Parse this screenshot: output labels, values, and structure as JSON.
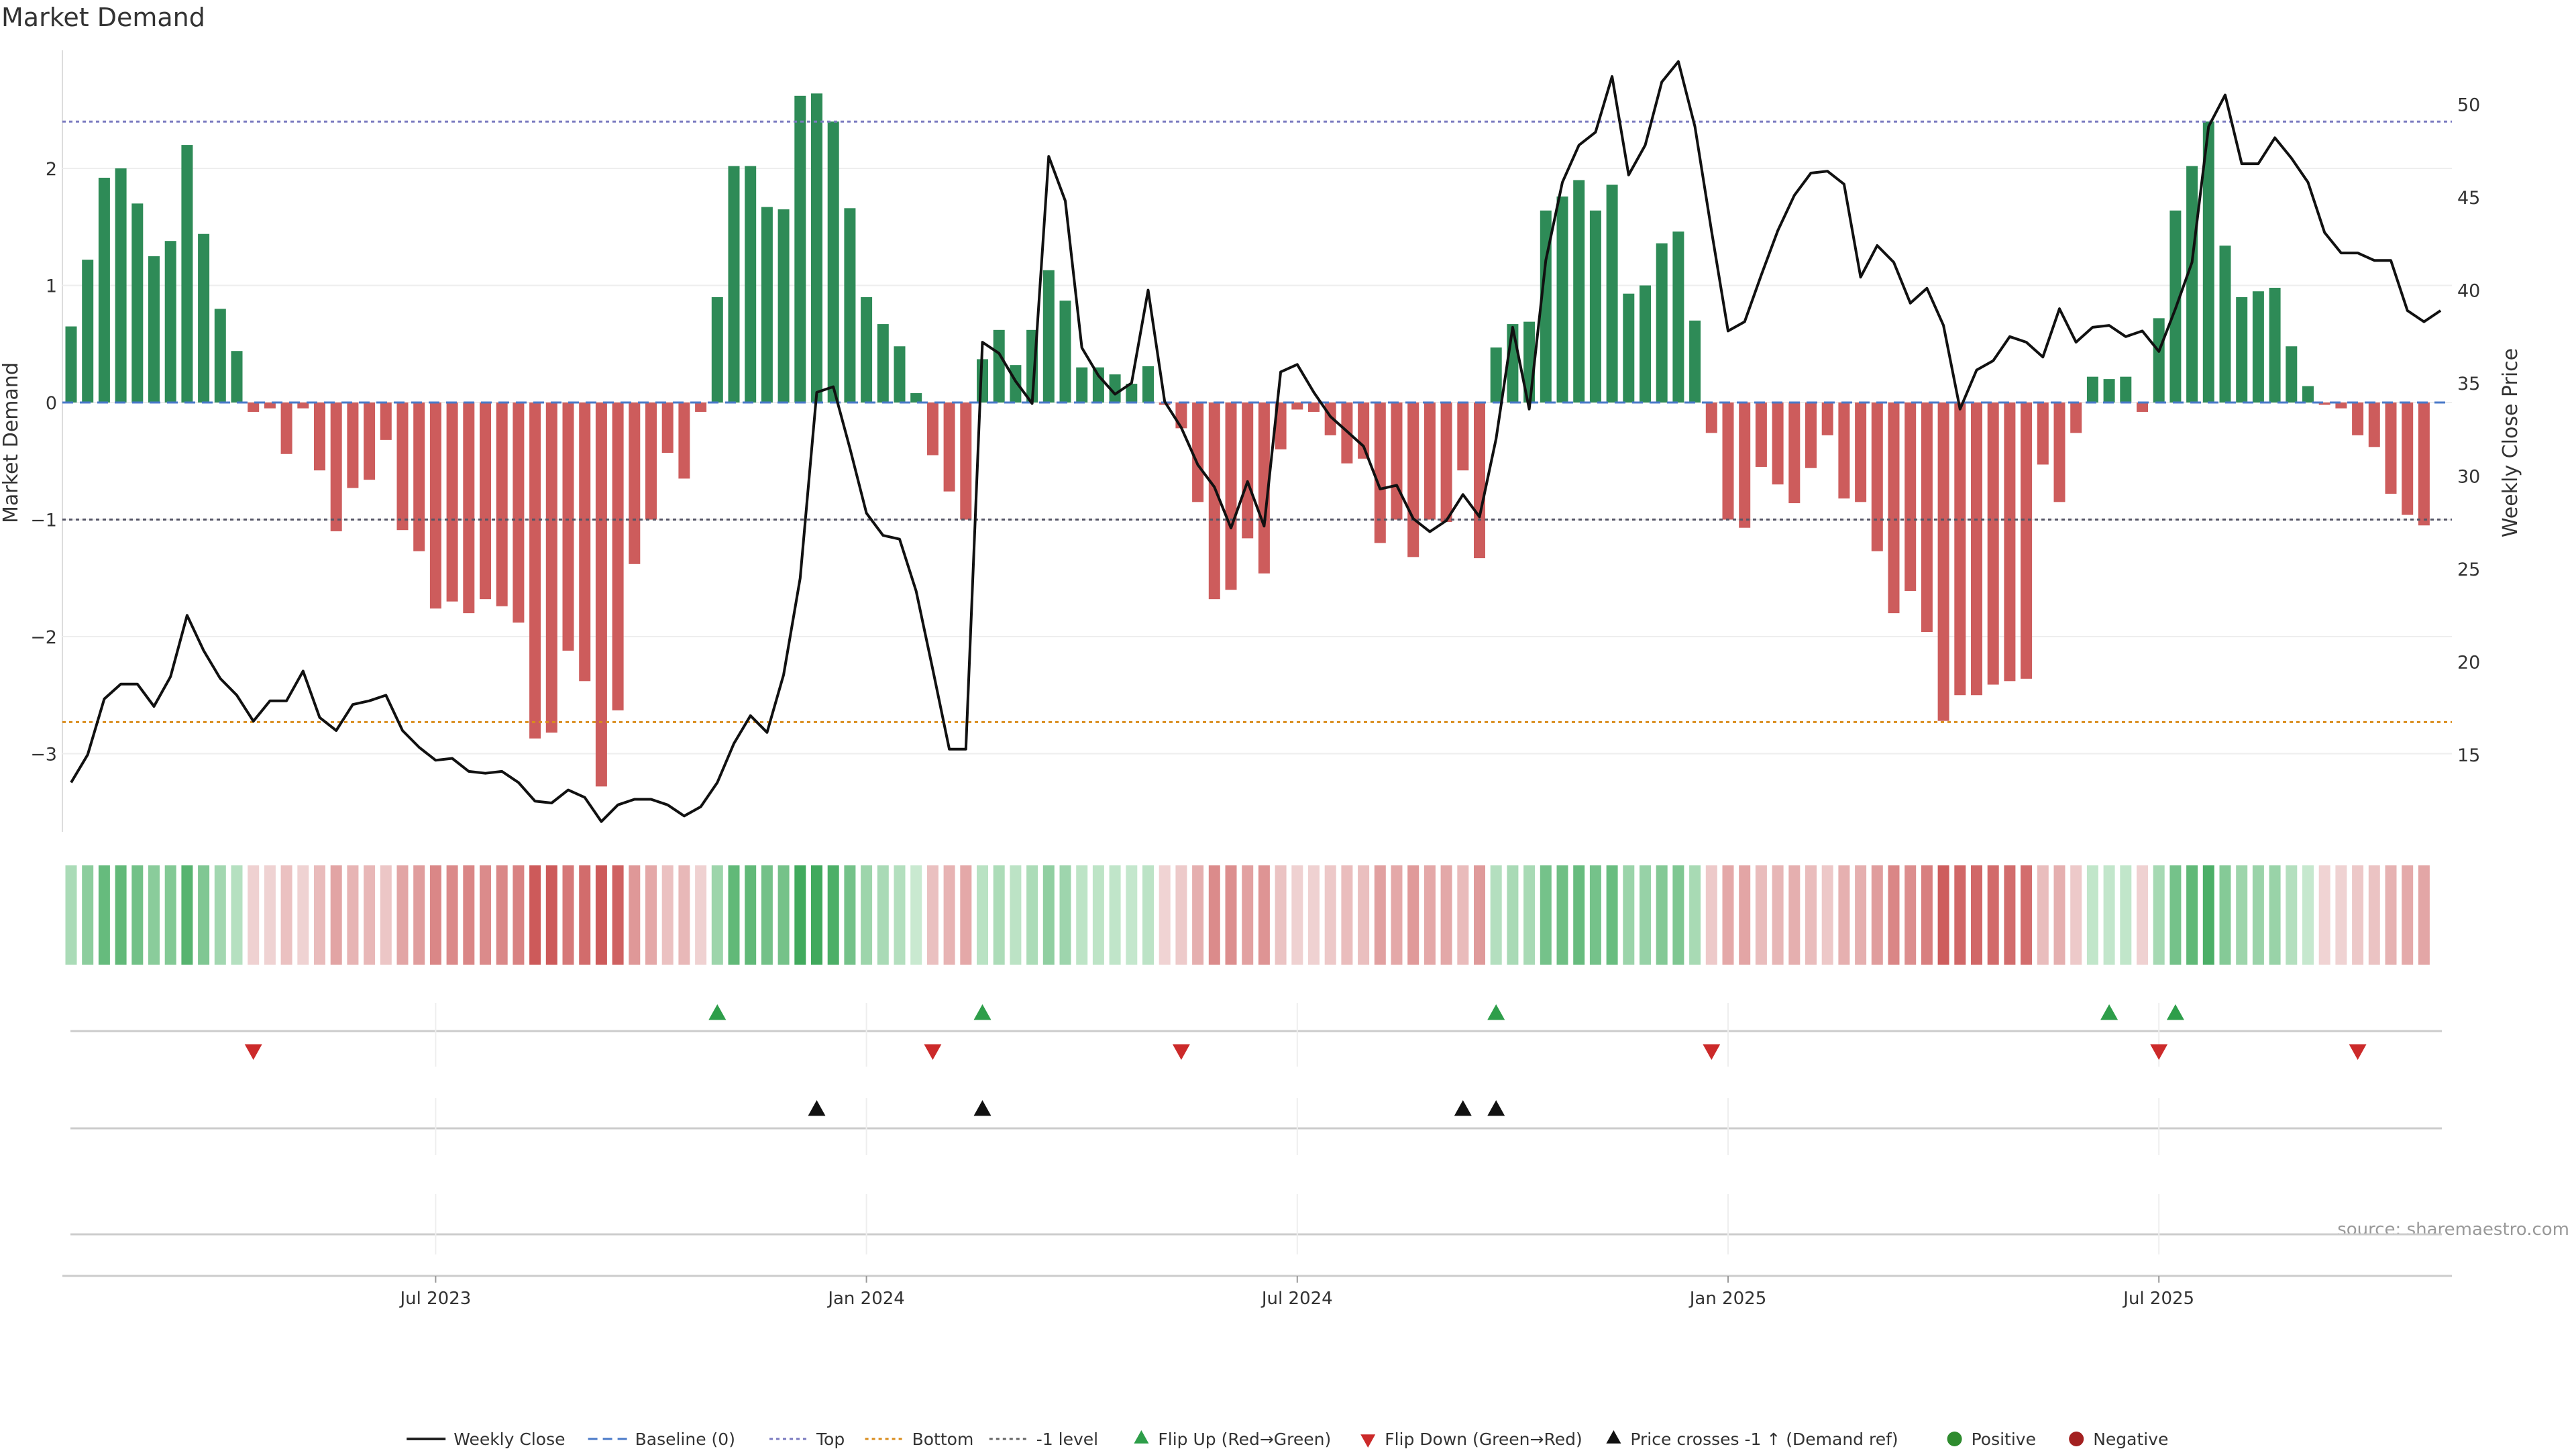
{
  "chart_data": {
    "type": "bar",
    "title": "Market Demand",
    "source": "source: sharemaestro.com",
    "y_left": {
      "label": "Market Demand",
      "ylim": [
        -3.6,
        3.0
      ],
      "ticks": [
        2,
        1,
        0,
        -1,
        -2,
        -3
      ],
      "tick_labels": [
        "2",
        "1",
        "0",
        "−1",
        "−2",
        "−3"
      ]
    },
    "y_right": {
      "label": "Weekly Close Price",
      "ylim": [
        12,
        53
      ],
      "ticks": [
        50,
        45,
        40,
        35,
        30,
        25,
        20,
        15
      ],
      "tick_labels": [
        "50",
        "45",
        "40",
        "35",
        "30",
        "25",
        "20",
        "15"
      ]
    },
    "x_axis": {
      "tick_index": [
        22,
        48,
        74,
        100,
        126
      ],
      "tick_labels": [
        "Jul 2023",
        "Jan 2024",
        "Jul 2024",
        "Jan 2025",
        "Jul 2025"
      ]
    },
    "reference_lines": {
      "top": 2.4,
      "bottom": -2.73,
      "minus_one": -1,
      "baseline": 0
    },
    "demand": [
      0.65,
      1.22,
      1.92,
      2.0,
      1.7,
      1.25,
      1.38,
      2.2,
      1.44,
      0.8,
      0.44,
      -0.08,
      -0.05,
      -0.44,
      -0.05,
      -0.58,
      -1.1,
      -0.73,
      -0.66,
      -0.32,
      -1.09,
      -1.27,
      -1.76,
      -1.7,
      -1.8,
      -1.68,
      -1.74,
      -1.88,
      -2.87,
      -2.82,
      -2.12,
      -2.38,
      -3.28,
      -2.63,
      -1.38,
      -1.0,
      -0.43,
      -0.65,
      -0.08,
      0.9,
      2.02,
      2.02,
      1.67,
      1.65,
      2.62,
      2.64,
      2.4,
      1.66,
      0.9,
      0.67,
      0.48,
      0.08,
      -0.45,
      -0.76,
      -1.0,
      0.37,
      0.62,
      0.32,
      0.62,
      1.13,
      0.87,
      0.3,
      0.3,
      0.24,
      0.16,
      0.31,
      -0.02,
      -0.22,
      -0.85,
      -1.68,
      -1.6,
      -1.16,
      -1.46,
      -0.4,
      -0.06,
      -0.08,
      -0.28,
      -0.52,
      -0.48,
      -1.2,
      -1.0,
      -1.32,
      -1.0,
      -1.02,
      -0.58,
      -1.33,
      0.47,
      0.67,
      0.69,
      1.64,
      1.76,
      1.9,
      1.64,
      1.86,
      0.93,
      1.0,
      1.36,
      1.46,
      0.7,
      -0.26,
      -1.0,
      -1.07,
      -0.55,
      -0.7,
      -0.86,
      -0.56,
      -0.28,
      -0.82,
      -0.85,
      -1.27,
      -1.8,
      -1.61,
      -1.96,
      -2.72,
      -2.5,
      -2.5,
      -2.41,
      -2.38,
      -2.36,
      -0.53,
      -0.85,
      -0.26,
      0.22,
      0.2,
      0.22,
      -0.08,
      0.72,
      1.64,
      2.02,
      2.4,
      1.34,
      0.9,
      0.95,
      0.98,
      0.48,
      0.14,
      -0.02,
      -0.05,
      -0.28,
      -0.38,
      -0.78,
      -0.96,
      -1.05
    ],
    "weekly_close": [
      13.5,
      15.0,
      18.0,
      18.8,
      18.8,
      17.6,
      19.2,
      22.5,
      20.6,
      19.1,
      18.2,
      16.8,
      17.9,
      17.9,
      19.5,
      17.0,
      16.3,
      17.7,
      17.9,
      18.2,
      16.3,
      15.4,
      14.7,
      14.8,
      14.1,
      14.0,
      14.1,
      13.5,
      12.5,
      12.4,
      13.1,
      12.7,
      11.4,
      12.3,
      12.6,
      12.6,
      12.3,
      11.7,
      12.2,
      13.5,
      15.6,
      17.1,
      16.2,
      19.3,
      24.5,
      34.5,
      34.8,
      31.5,
      28.0,
      26.8,
      26.6,
      23.8,
      19.6,
      15.3,
      15.3,
      37.2,
      36.6,
      35.1,
      33.9,
      47.2,
      44.8,
      36.9,
      35.4,
      34.4,
      35.0,
      40.0,
      34.0,
      32.6,
      30.6,
      29.4,
      27.2,
      29.7,
      27.3,
      35.6,
      36.0,
      34.5,
      33.2,
      32.4,
      31.6,
      29.3,
      29.5,
      27.7,
      27.0,
      27.6,
      29.0,
      27.8,
      32.0,
      38.0,
      33.6,
      41.6,
      45.8,
      47.8,
      48.5,
      51.5,
      46.2,
      47.8,
      51.2,
      52.3,
      48.8,
      43.2,
      37.8,
      38.3,
      40.8,
      43.2,
      45.1,
      46.3,
      46.4,
      45.7,
      40.7,
      42.4,
      41.5,
      39.3,
      40.1,
      38.1,
      33.6,
      35.7,
      36.2,
      37.5,
      37.2,
      36.4,
      39.0,
      37.2,
      38.0,
      38.1,
      37.5,
      37.8,
      36.7,
      39.0,
      41.5,
      48.8,
      50.5,
      46.8,
      46.8,
      48.2,
      47.1,
      45.8,
      43.1,
      42.0,
      42.0,
      41.6,
      41.6,
      38.9,
      38.3,
      38.9
    ],
    "flip_up_index": [
      39,
      55,
      86,
      123,
      127
    ],
    "flip_down_index": [
      11,
      52,
      67,
      99,
      126,
      138
    ],
    "price_cross_index": [
      45,
      55,
      84,
      86
    ],
    "legend": [
      {
        "label": "Weekly Close",
        "color": "#222222",
        "style": "line"
      },
      {
        "label": "Baseline (0)",
        "color": "#4a7ac8",
        "style": "dash"
      },
      {
        "label": "Top",
        "color": "#7b7bc0",
        "style": "dot"
      },
      {
        "label": "Bottom",
        "color": "#d98c1c",
        "style": "dot"
      },
      {
        "label": "-1 level",
        "color": "#666666",
        "style": "dot"
      },
      {
        "label": "Flip Up (Red→Green)",
        "color": "#2e9e4a",
        "style": "tri-up"
      },
      {
        "label": "Flip Down (Green→Red)",
        "color": "#cc2a2a",
        "style": "tri-down"
      },
      {
        "label": "Price crosses -1 ↑ (Demand ref)",
        "color": "#111111",
        "style": "tri-up"
      },
      {
        "label": "Positive",
        "color": "#2e8b2e",
        "style": "dot-marker"
      },
      {
        "label": "Negative",
        "color": "#a32020",
        "style": "dot-marker"
      }
    ],
    "colors": {
      "positive": "#2e8b57",
      "negative": "#cd5c5c",
      "line": "#111111"
    }
  }
}
